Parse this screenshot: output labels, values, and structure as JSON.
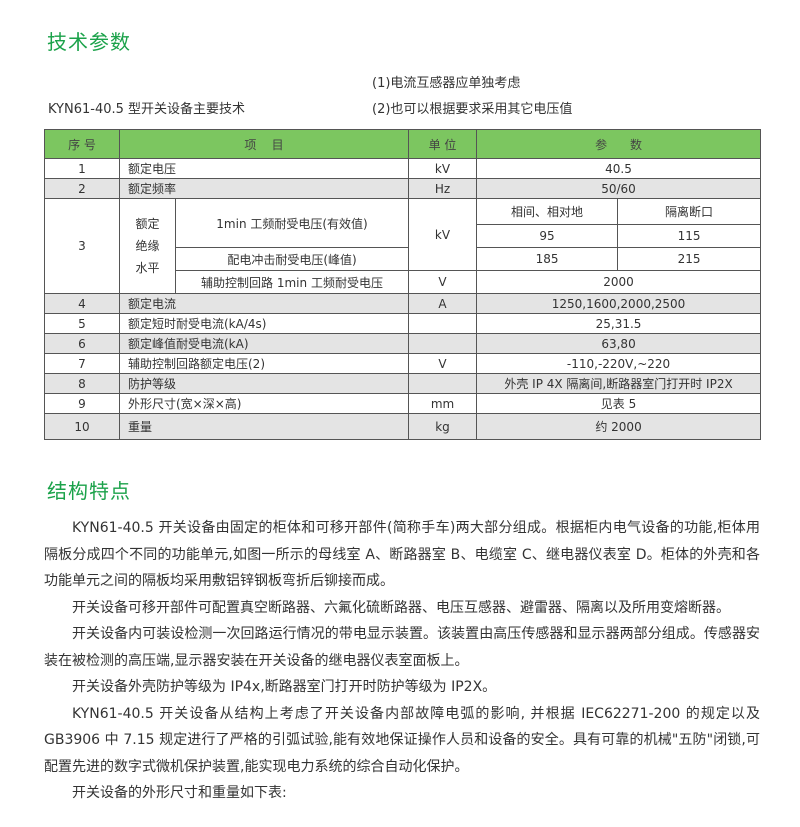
{
  "section1_title": "技术参数",
  "note1": "(1)电流互感器应单独考虑",
  "note2": "(2)也可以根据要求采用其它电压值",
  "table_caption": "KYN61-40.5 型开关设备主要技术",
  "table": {
    "headers": [
      "序 号",
      "项    目",
      "单 位",
      "参      数"
    ],
    "row1": [
      "1",
      "额定电压",
      "kV",
      "40.5"
    ],
    "row2": [
      "2",
      "额定频率",
      "Hz",
      "50/60"
    ],
    "row3": {
      "no": "3",
      "group": "额定\n绝缘\n水平",
      "item_a": "1min 工频耐受电压(有效值)",
      "unit_a": "kV",
      "sub_h1": "相间、相对地",
      "sub_h2": "隔离断口",
      "a1": "95",
      "a2": "115",
      "item_b": "配电冲击耐受电压(峰值)",
      "b1": "185",
      "b2": "215",
      "item_c": "辅助控制回路 1min 工频耐受电压",
      "unit_c": "V",
      "c": "2000"
    },
    "row4": [
      "4",
      "额定电流",
      "A",
      "1250,1600,2000,2500"
    ],
    "row5": [
      "5",
      "额定短时耐受电流(kA/4s)",
      "",
      "25,31.5"
    ],
    "row6": [
      "6",
      "额定峰值耐受电流(kA)",
      "",
      "63,80"
    ],
    "row7": [
      "7",
      "辅助控制回路额定电压(2)",
      "V",
      "-110,-220V,~220"
    ],
    "row8": [
      "8",
      "防护等级",
      "",
      "外壳 IP 4X 隔离间,断路器室门打开时 IP2X"
    ],
    "row9": [
      "9",
      "外形尺寸(宽×深×高)",
      "mm",
      "见表 5"
    ],
    "row10": [
      "10",
      "重量",
      "kg",
      "约 2000"
    ]
  },
  "section2_title": "结构特点",
  "paragraphs": [
    "KYN61-40.5 开关设备由固定的柜体和可移开部件(简称手车)两大部分组成。根据柜内电气设备的功能,柜体用隔板分成四个不同的功能单元,如图一所示的母线室 A、断路器室 B、电缆室 C、继电器仪表室 D。柜体的外壳和各功能单元之间的隔板均采用敷铝锌钢板弯折后铆接而成。",
    "开关设备可移开部件可配置真空断路器、六氟化硫断路器、电压互感器、避雷器、隔离以及所用变熔断器。",
    "开关设备内可装设检测一次回路运行情况的带电显示装置。该装置由高压传感器和显示器两部分组成。传感器安装在被检测的高压端,显示器安装在开关设备的继电器仪表室面板上。",
    "开关设备外壳防护等级为 IP4x,断路器室门打开时防护等级为 IP2X。",
    "KYN61-40.5 开关设备从结构上考虑了开关设备内部故障电弧的影响, 并根据 IEC62271-200 的规定以及GB3906 中 7.15 规定进行了严格的引弧试验,能有效地保证操作人员和设备的安全。具有可靠的机械\"五防\"闭锁,可配置先进的数字式微机保护装置,能实现电力系统的综合自动化保护。",
    "开关设备的外形尺寸和重量如下表:"
  ]
}
